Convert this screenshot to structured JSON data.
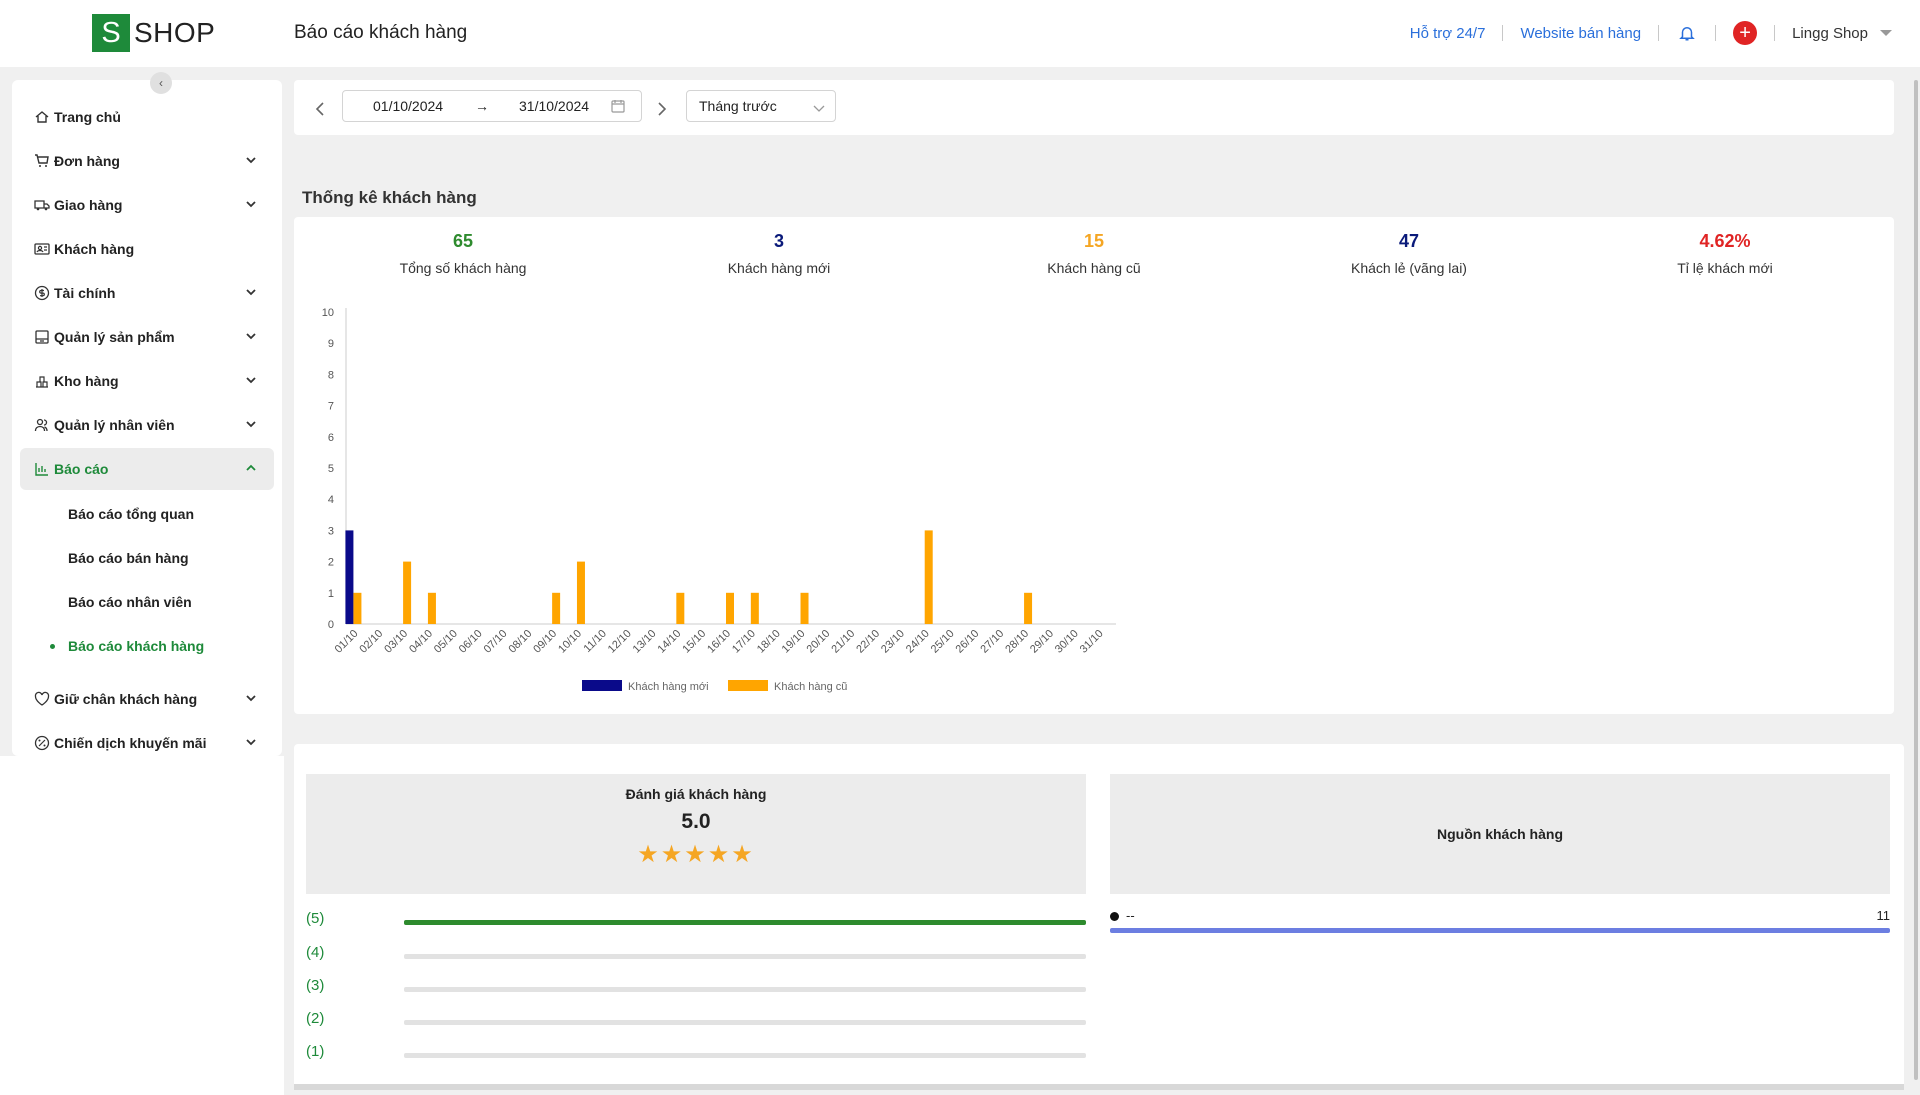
{
  "app": {
    "logo_letter": "S",
    "logo_text": "SHOP",
    "page_title": "Báo cáo khách hàng"
  },
  "topbar": {
    "support_link": "Hỗ trợ 24/7",
    "website_link": "Website bán hàng",
    "shop_name": "Lingg Shop",
    "accent_color": "#2a6fdb"
  },
  "sidebar": {
    "items": [
      {
        "label": "Trang chủ",
        "icon": "home-icon",
        "has_children": false
      },
      {
        "label": "Đơn hàng",
        "icon": "cart-icon",
        "has_children": true
      },
      {
        "label": "Giao hàng",
        "icon": "truck-icon",
        "has_children": true
      },
      {
        "label": "Khách hàng",
        "icon": "contact-card-icon",
        "has_children": false
      },
      {
        "label": "Tài chính",
        "icon": "dollar-icon",
        "has_children": true
      },
      {
        "label": "Quản lý sản phẩm",
        "icon": "box-icon",
        "has_children": true
      },
      {
        "label": "Kho hàng",
        "icon": "warehouse-icon",
        "has_children": true
      },
      {
        "label": "Quản lý nhân viên",
        "icon": "users-icon",
        "has_children": true
      },
      {
        "label": "Báo cáo",
        "icon": "chart-icon",
        "has_children": true,
        "expanded": true
      },
      {
        "label": "Giữ chân khách hàng",
        "icon": "heart-icon",
        "has_children": true
      },
      {
        "label": "Chiến dịch khuyến mãi",
        "icon": "percent-icon",
        "has_children": true
      }
    ],
    "report_sub_items": [
      {
        "label": "Báo cáo tổng quan"
      },
      {
        "label": "Báo cáo bán hàng"
      },
      {
        "label": "Báo cáo nhân viên"
      },
      {
        "label": "Báo cáo khách hàng",
        "active": true
      }
    ],
    "active_color": "#1e8a3a"
  },
  "filter": {
    "date_from": "01/10/2024",
    "date_to": "31/10/2024",
    "period": "Tháng trước"
  },
  "section": {
    "title": "Thống kê khách hàng"
  },
  "stats": [
    {
      "value": "65",
      "label": "Tổng số khách hàng",
      "color": "#2e8b2e"
    },
    {
      "value": "3",
      "label": "Khách hàng mới",
      "color": "#0a1a7a"
    },
    {
      "value": "15",
      "label": "Khách hàng cũ",
      "color": "#f5a623"
    },
    {
      "value": "47",
      "label": "Khách lẻ (vãng lai)",
      "color": "#0a1a7a"
    },
    {
      "value": "4.62%",
      "label": "Tỉ lệ khách mới",
      "color": "#e02424"
    }
  ],
  "chart_data": {
    "type": "bar",
    "categories": [
      "01/10",
      "02/10",
      "03/10",
      "04/10",
      "05/10",
      "06/10",
      "07/10",
      "08/10",
      "09/10",
      "10/10",
      "11/10",
      "12/10",
      "13/10",
      "14/10",
      "15/10",
      "16/10",
      "17/10",
      "18/10",
      "19/10",
      "20/10",
      "21/10",
      "22/10",
      "23/10",
      "24/10",
      "25/10",
      "26/10",
      "27/10",
      "28/10",
      "29/10",
      "30/10",
      "31/10"
    ],
    "series": [
      {
        "name": "Khách hàng mới",
        "color": "#0a0a8a",
        "values": [
          3,
          0,
          0,
          0,
          0,
          0,
          0,
          0,
          0,
          0,
          0,
          0,
          0,
          0,
          0,
          0,
          0,
          0,
          0,
          0,
          0,
          0,
          0,
          0,
          0,
          0,
          0,
          0,
          0,
          0,
          0
        ]
      },
      {
        "name": "Khách hàng cũ",
        "color": "#ffa500",
        "values": [
          1,
          0,
          2,
          1,
          0,
          0,
          0,
          0,
          1,
          2,
          0,
          0,
          0,
          1,
          0,
          1,
          1,
          0,
          1,
          0,
          0,
          0,
          0,
          3,
          0,
          0,
          0,
          1,
          0,
          0,
          0
        ]
      }
    ],
    "ylim": [
      0,
      10
    ],
    "yticks": [
      "0",
      "1",
      "2",
      "3",
      "4",
      "5",
      "6",
      "7",
      "8",
      "9",
      "10"
    ],
    "grid": false,
    "legend": "bottom"
  },
  "rating": {
    "title": "Đánh giá khách hàng",
    "score": "5.0",
    "stars": "★★★★★",
    "rows": [
      {
        "label": "(5)",
        "fraction": 1
      },
      {
        "label": "(4)",
        "fraction": 0
      },
      {
        "label": "(3)",
        "fraction": 0
      },
      {
        "label": "(2)",
        "fraction": 0
      },
      {
        "label": "(1)",
        "fraction": 0
      }
    ]
  },
  "source": {
    "title": "Nguồn khách hàng",
    "rows": [
      {
        "name": "--",
        "value": "11"
      }
    ]
  }
}
